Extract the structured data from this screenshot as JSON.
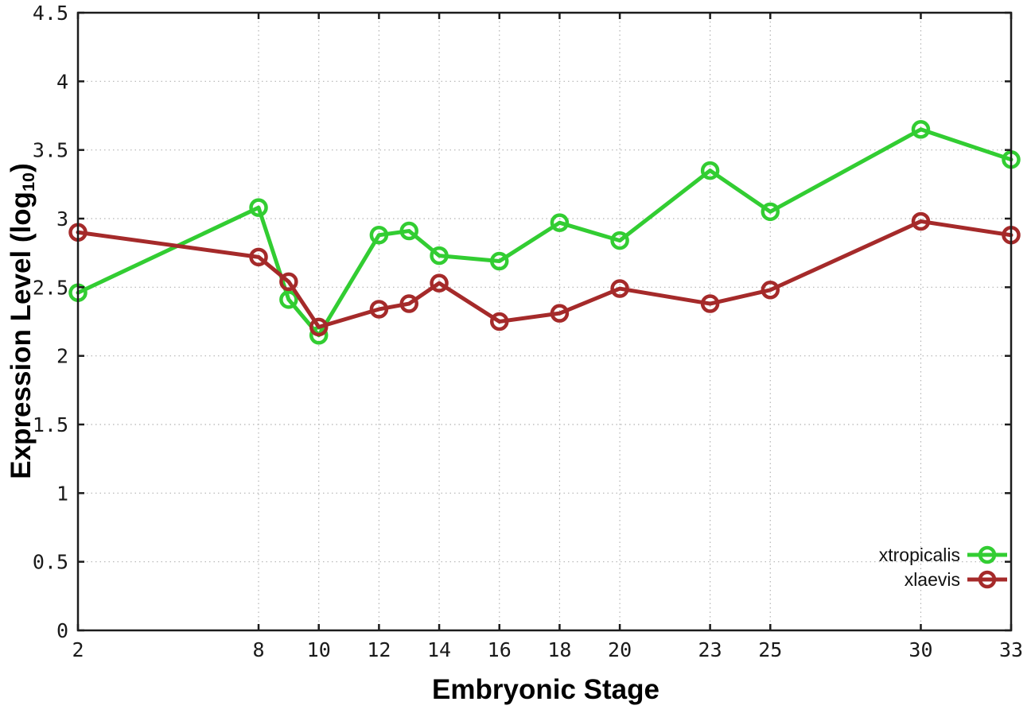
{
  "chart_data": {
    "type": "line",
    "title": "",
    "xlabel": "Embryonic Stage",
    "ylabel": "Expression Level (log10)",
    "ylabel_parts": {
      "prefix": "Expression Level (log",
      "subscript": "10",
      "suffix": ")"
    },
    "x": [
      2,
      8,
      9,
      10,
      12,
      13,
      14,
      16,
      18,
      20,
      23,
      25,
      30,
      33
    ],
    "xlim": [
      2,
      33
    ],
    "ylim": [
      0,
      4.5
    ],
    "x_tick_labels": [
      2,
      8,
      10,
      12,
      14,
      16,
      18,
      20,
      23,
      25,
      30,
      33
    ],
    "y_ticks": [
      0,
      0.5,
      1,
      1.5,
      2,
      2.5,
      3,
      3.5,
      4,
      4.5
    ],
    "y_tick_labels": [
      "0",
      "0.5",
      "1",
      "1.5",
      "2",
      "2.5",
      "3",
      "3.5",
      "4",
      "4.5"
    ],
    "grid": true,
    "legend_position": "bottom-right",
    "series": [
      {
        "name": "xtropicalis",
        "color": "#32cd32",
        "values": [
          2.46,
          3.08,
          2.41,
          2.15,
          2.88,
          2.91,
          2.73,
          2.69,
          2.97,
          2.84,
          3.35,
          3.05,
          3.65,
          3.43
        ]
      },
      {
        "name": "xlaevis",
        "color": "#a52a2a",
        "values": [
          2.9,
          2.72,
          2.54,
          2.21,
          2.34,
          2.38,
          2.53,
          2.25,
          2.31,
          2.49,
          2.38,
          2.48,
          2.98,
          2.88
        ]
      }
    ],
    "colors": {
      "grid": "#b3b3b3",
      "axis": "#1c1c1c",
      "tick_label": "#1a1a1a"
    }
  }
}
